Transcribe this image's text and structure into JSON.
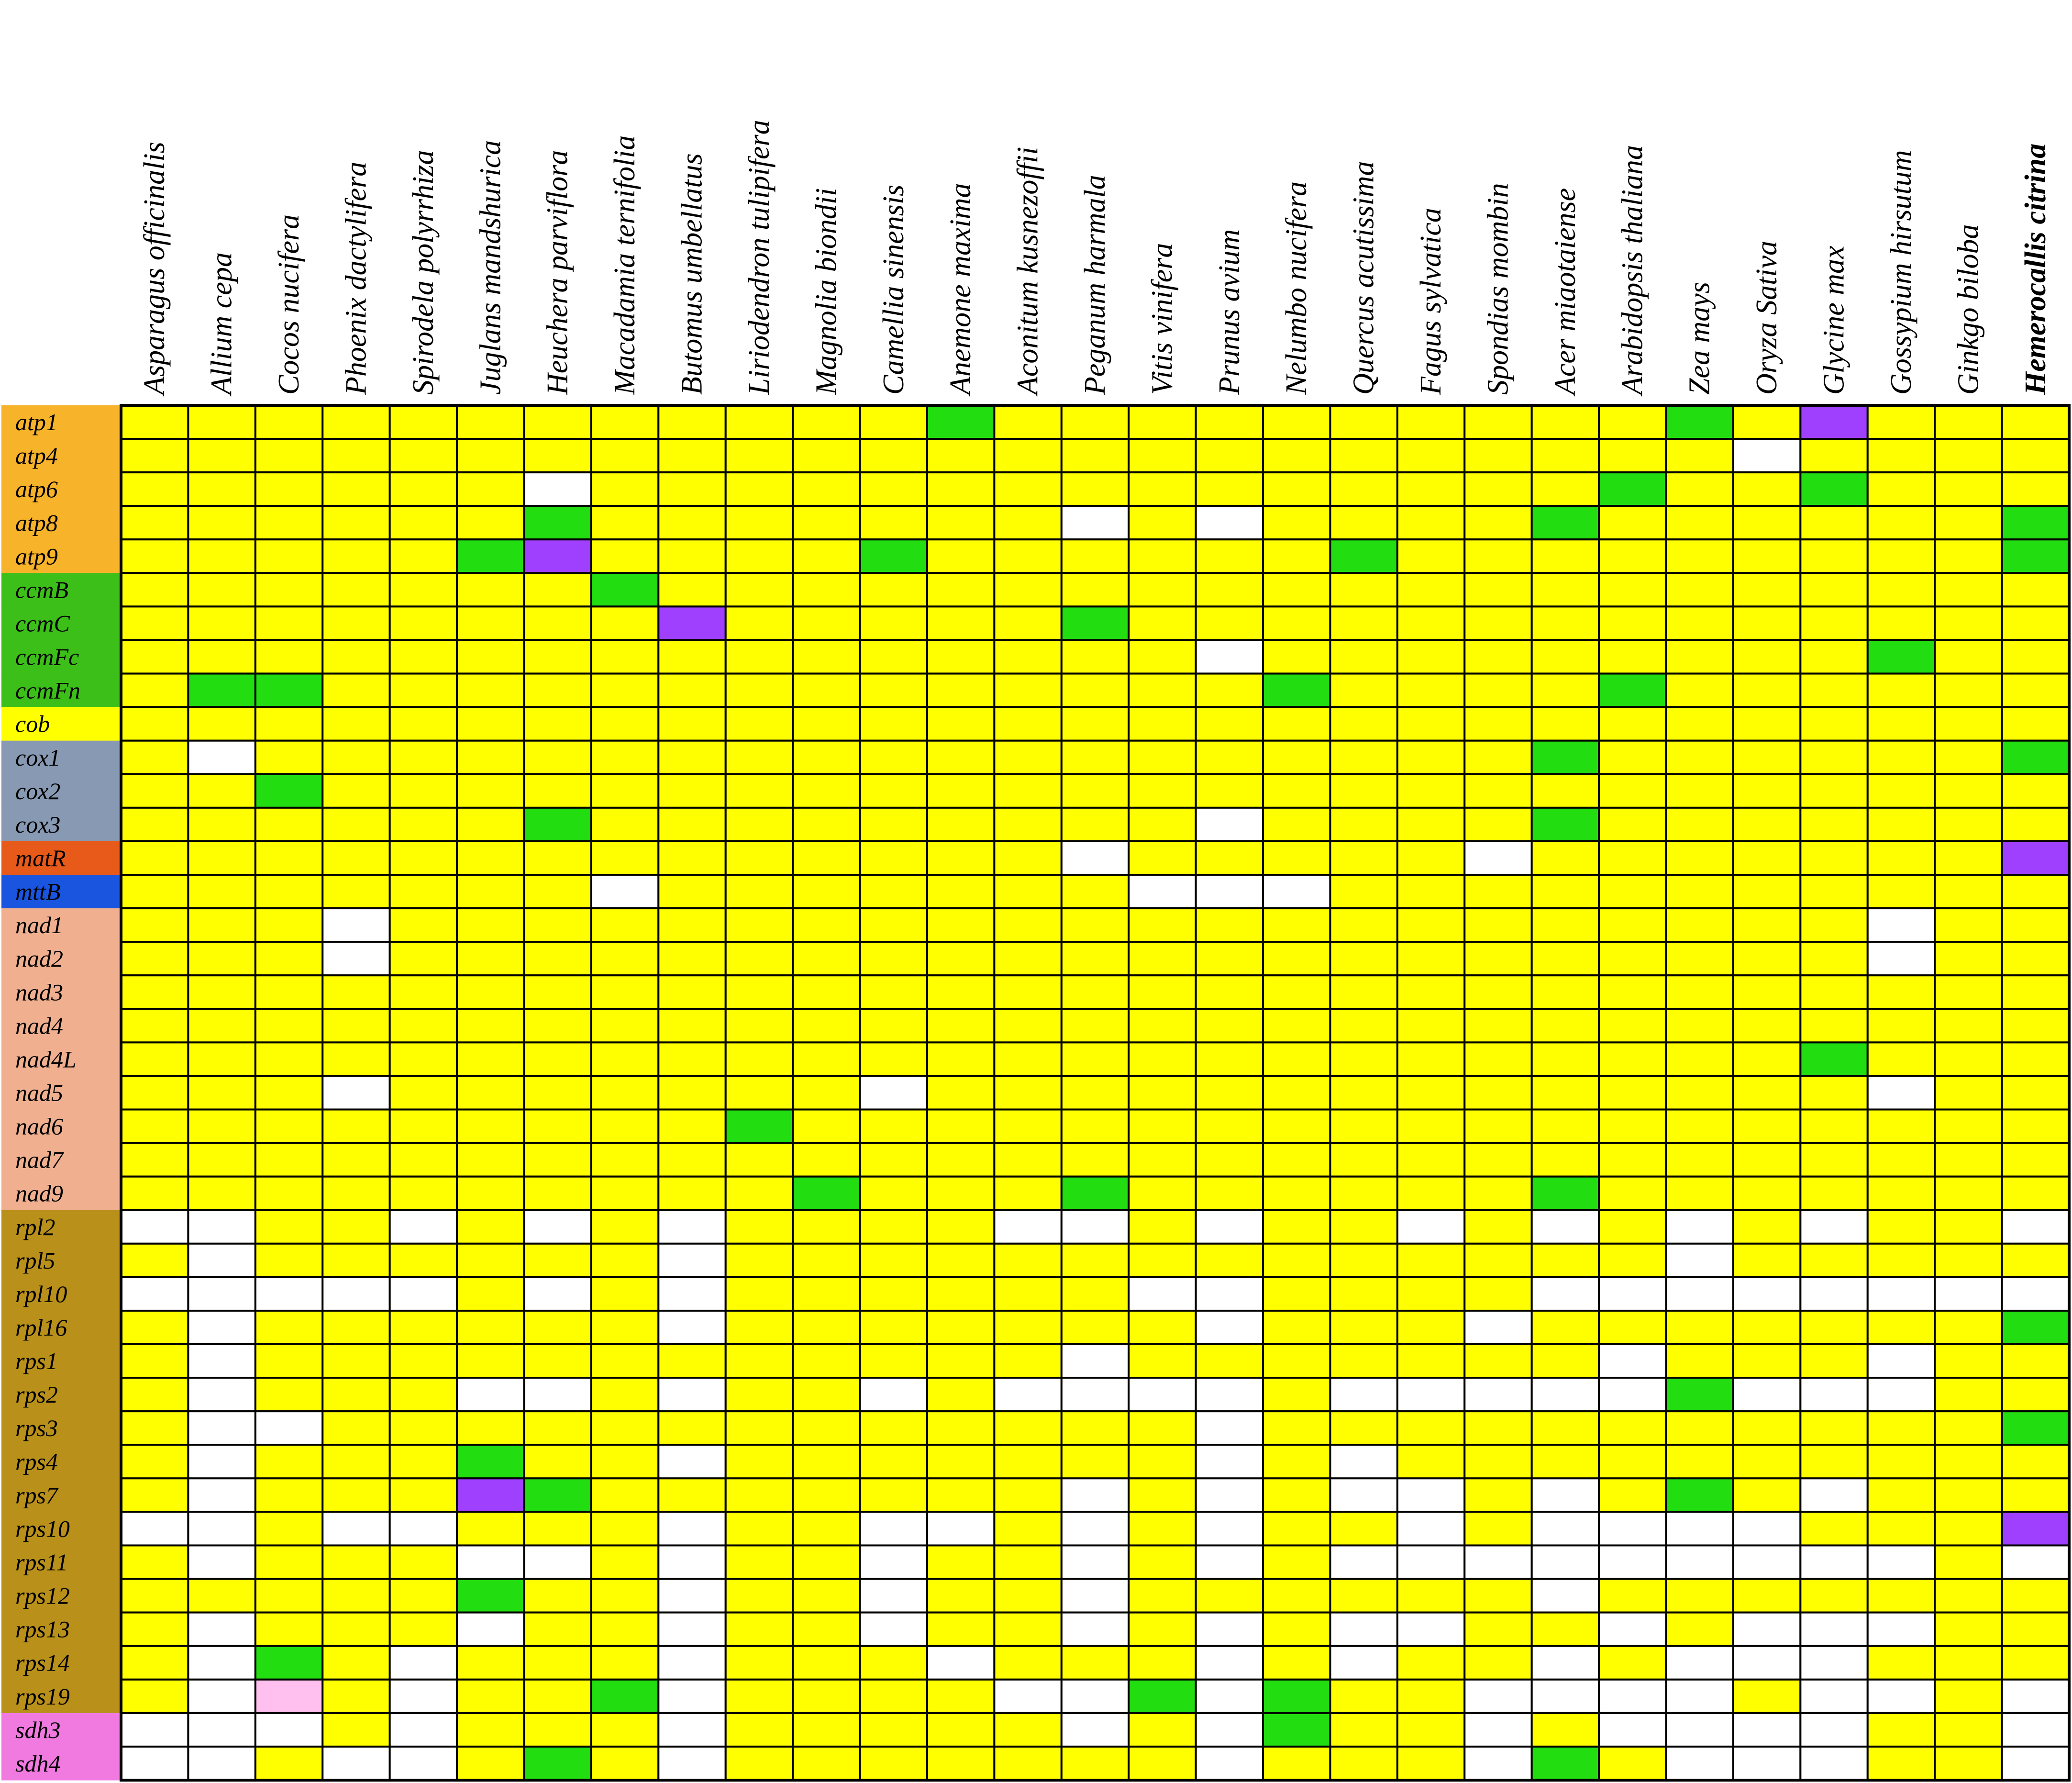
{
  "chart_data": {
    "type": "heatmap",
    "title": "",
    "xlabel": "",
    "ylabel": "",
    "legend": "none",
    "colors": {
      "Y": "#ffff00",
      "G": "#22dd10",
      "W": "#ffffff",
      "P": "#a040ff",
      "K": "#ffc0f0"
    },
    "columns": [
      {
        "label": "Asparagus officinalis",
        "bold": false
      },
      {
        "label": "Allium cepa",
        "bold": false
      },
      {
        "label": "Cocos nucifera",
        "bold": false
      },
      {
        "label": "Phoenix dactylifera",
        "bold": false
      },
      {
        "label": "Spirodela polyrrhiza",
        "bold": false
      },
      {
        "label": "Juglans mandshurica",
        "bold": false
      },
      {
        "label": "Heuchera parviflora",
        "bold": false
      },
      {
        "label": "Macadamia ternifolia",
        "bold": false
      },
      {
        "label": "Butomus umbellatus",
        "bold": false
      },
      {
        "label": "Liriodendron tulipifera",
        "bold": false
      },
      {
        "label": "Magnolia  biondii",
        "bold": false
      },
      {
        "label": "Camellia sinensis",
        "bold": false
      },
      {
        "label": "Anemone maxima",
        "bold": false
      },
      {
        "label": "Aconitum kusnezoffii",
        "bold": false
      },
      {
        "label": "Peganum harmala",
        "bold": false
      },
      {
        "label": "Vitis vinifera",
        "bold": false
      },
      {
        "label": "Prunus avium",
        "bold": false
      },
      {
        "label": "Nelumbo nucifera",
        "bold": false
      },
      {
        "label": "Quercus acutissima",
        "bold": false
      },
      {
        "label": "Fagus sylvatica",
        "bold": false
      },
      {
        "label": "Spondias mombin",
        "bold": false
      },
      {
        "label": "Acer miaotaiense",
        "bold": false
      },
      {
        "label": "Arabidopsis thaliana",
        "bold": false
      },
      {
        "label": "Zea mays",
        "bold": false
      },
      {
        "label": "Oryza Sativa",
        "bold": false
      },
      {
        "label": "Glycine max",
        "bold": false
      },
      {
        "label": "Gossypium hirsutum",
        "bold": false
      },
      {
        "label": "Ginkgo biloba",
        "bold": false
      },
      {
        "label": "Hemerocallis citrina",
        "bold": true
      }
    ],
    "rows": [
      {
        "gene": "atp1",
        "group_color": "#f7b32a",
        "cells": "YYYYYYYYYYYYGYYYYYYYYYYGYPYYY"
      },
      {
        "gene": "atp4",
        "group_color": "#f7b32a",
        "cells": "YYYYYYYYYYYYYYYYYYYYYYYYWYYYY"
      },
      {
        "gene": "atp6",
        "group_color": "#f7b32a",
        "cells": "YYYYYYWYYYYYYYYYYYYYYYGYYGYYY"
      },
      {
        "gene": "atp8",
        "group_color": "#f7b32a",
        "cells": "YYYYYYGYYYYYYYWYWYYYYGYYYYYYG"
      },
      {
        "gene": "atp9",
        "group_color": "#f7b32a",
        "cells": "YYYYYGPYYYYGYYYYYYGYYYYYYYYYG"
      },
      {
        "gene": "ccmB",
        "group_color": "#3dbf1a",
        "cells": "YYYYYYYGYYYYYYYYYYYYYYYYYYYYY"
      },
      {
        "gene": "ccmC",
        "group_color": "#3dbf1a",
        "cells": "YYYYYYYYPYYYYYGYYYYYYYYYYYYYY"
      },
      {
        "gene": "ccmFc",
        "group_color": "#3dbf1a",
        "cells": "YYYYYYYYYYYYYYYYWYYYYYYYYYGYY"
      },
      {
        "gene": "ccmFn",
        "group_color": "#3dbf1a",
        "cells": "YGGYYYYYYYYYYYYYYGYYYYGYYYYYY"
      },
      {
        "gene": "cob",
        "group_color": "#ffff00",
        "cells": "YYYYYYYYYYYYYYYYYYYYYYYYYYYYY"
      },
      {
        "gene": "cox1",
        "group_color": "#8899b3",
        "cells": "YWYYYYYYYYYYYYYYYYYYYGYYYYYYG"
      },
      {
        "gene": "cox2",
        "group_color": "#8899b3",
        "cells": "YYGYYYYYYYYYYYYYYYYYYYYYYYYYY"
      },
      {
        "gene": "cox3",
        "group_color": "#8899b3",
        "cells": "YYYYYYGYYYYYYYYYWYYYYGYYYYYYY"
      },
      {
        "gene": "matR",
        "group_color": "#e85a1a",
        "cells": "YYYYYYYYYYYYYYWYYYYYWYYYYYYYP"
      },
      {
        "gene": "mttB",
        "group_color": "#1a55e0",
        "cells": "YYYYYYYWYYYYYYYWWWYYYYYYYYYYY"
      },
      {
        "gene": "nad1",
        "group_color": "#f0b090",
        "cells": "YYYWYYYYYYYYYYYYYYYYYYYYYYWYY"
      },
      {
        "gene": "nad2",
        "group_color": "#f0b090",
        "cells": "YYYWYYYYYYYYYYYYYYYYYYYYYYWYY"
      },
      {
        "gene": "nad3",
        "group_color": "#f0b090",
        "cells": "YYYYYYYYYYYYYYYYYYYYYYYYYYYYY"
      },
      {
        "gene": "nad4",
        "group_color": "#f0b090",
        "cells": "YYYYYYYYYYYYYYYYYYYYYYYYYYYYY"
      },
      {
        "gene": "nad4L",
        "group_color": "#f0b090",
        "cells": "YYYYYYYYYYYYYYYYYYYYYYYYYGYYY"
      },
      {
        "gene": "nad5",
        "group_color": "#f0b090",
        "cells": "YYYWYYYYYYYWYYYYYYYYYYYYYYWYY"
      },
      {
        "gene": "nad6",
        "group_color": "#f0b090",
        "cells": "YYYYYYYYYGYYYYYYYYYYYYYYYYYYY"
      },
      {
        "gene": "nad7",
        "group_color": "#f0b090",
        "cells": "YYYYYYYYYYYYYYYYYYYYYYYYYYYYY"
      },
      {
        "gene": "nad9",
        "group_color": "#f0b090",
        "cells": "YYYYYYYYYYGYYYGYYYYYYGYYYYYYY"
      },
      {
        "gene": "rpl2",
        "group_color": "#b8901a",
        "cells": "WWYYWYWYWYYYYWWYWYYWYWYWYWYYW"
      },
      {
        "gene": "rpl5",
        "group_color": "#b8901a",
        "cells": "YWYYYYYYWYYYYYYYYYYYYYYWYYYYY"
      },
      {
        "gene": "rpl10",
        "group_color": "#b8901a",
        "cells": "WWWWWYWYWYYYYYYWWYYYYWWWWWWWW"
      },
      {
        "gene": "rpl16",
        "group_color": "#b8901a",
        "cells": "YWYYYYYYWYYYYYYYWYYYWYYYYYYYG"
      },
      {
        "gene": "rps1",
        "group_color": "#b8901a",
        "cells": "YWYYYYYYYYYYYYWYYYYYYYWYYYWYY"
      },
      {
        "gene": "rps2",
        "group_color": "#b8901a",
        "cells": "YWYYYWWYWYYWYWWWWYWWWWWGWWWYY"
      },
      {
        "gene": "rps3",
        "group_color": "#b8901a",
        "cells": "YWWYYYYYYYYYYYYYWYYYYYYYYYYYG"
      },
      {
        "gene": "rps4",
        "group_color": "#b8901a",
        "cells": "YWYYYGYYWYYYYYYYWYWYYYYYYYYYY"
      },
      {
        "gene": "rps7",
        "group_color": "#b8901a",
        "cells": "YWYYYPGYYYYYYYWYWYWWYWYGYWYYY"
      },
      {
        "gene": "rps10",
        "group_color": "#b8901a",
        "cells": "WWYWWYYYWYYWWYWYWYYWYWWWWYYYP"
      },
      {
        "gene": "rps11",
        "group_color": "#b8901a",
        "cells": "YWYYYWWYWYYWYYWYWYWWWWWWWWWYW"
      },
      {
        "gene": "rps12",
        "group_color": "#b8901a",
        "cells": "YYYYYGYYWYYWYYWYYYYYYWYYYYYYY"
      },
      {
        "gene": "rps13",
        "group_color": "#b8901a",
        "cells": "YWYYYWYYWYYWYYWYWYWWYYWYWWWYY"
      },
      {
        "gene": "rps14",
        "group_color": "#b8901a",
        "cells": "YWGYWYYYWYYYWYYYWYWYYWYWWWYYY"
      },
      {
        "gene": "rps19",
        "group_color": "#b8901a",
        "cells": "YWKYWYYGWYYYYWWGWGYYWWWWYWWYW"
      },
      {
        "gene": "sdh3",
        "group_color": "#f07ae0",
        "cells": "WWWYWYYYWYYYYYWYWGYYWYWWWWYYW"
      },
      {
        "gene": "sdh4",
        "group_color": "#f07ae0",
        "cells": "WWYWWYGYWYYYYYYYWYYYWGYWWWYYW"
      }
    ]
  }
}
